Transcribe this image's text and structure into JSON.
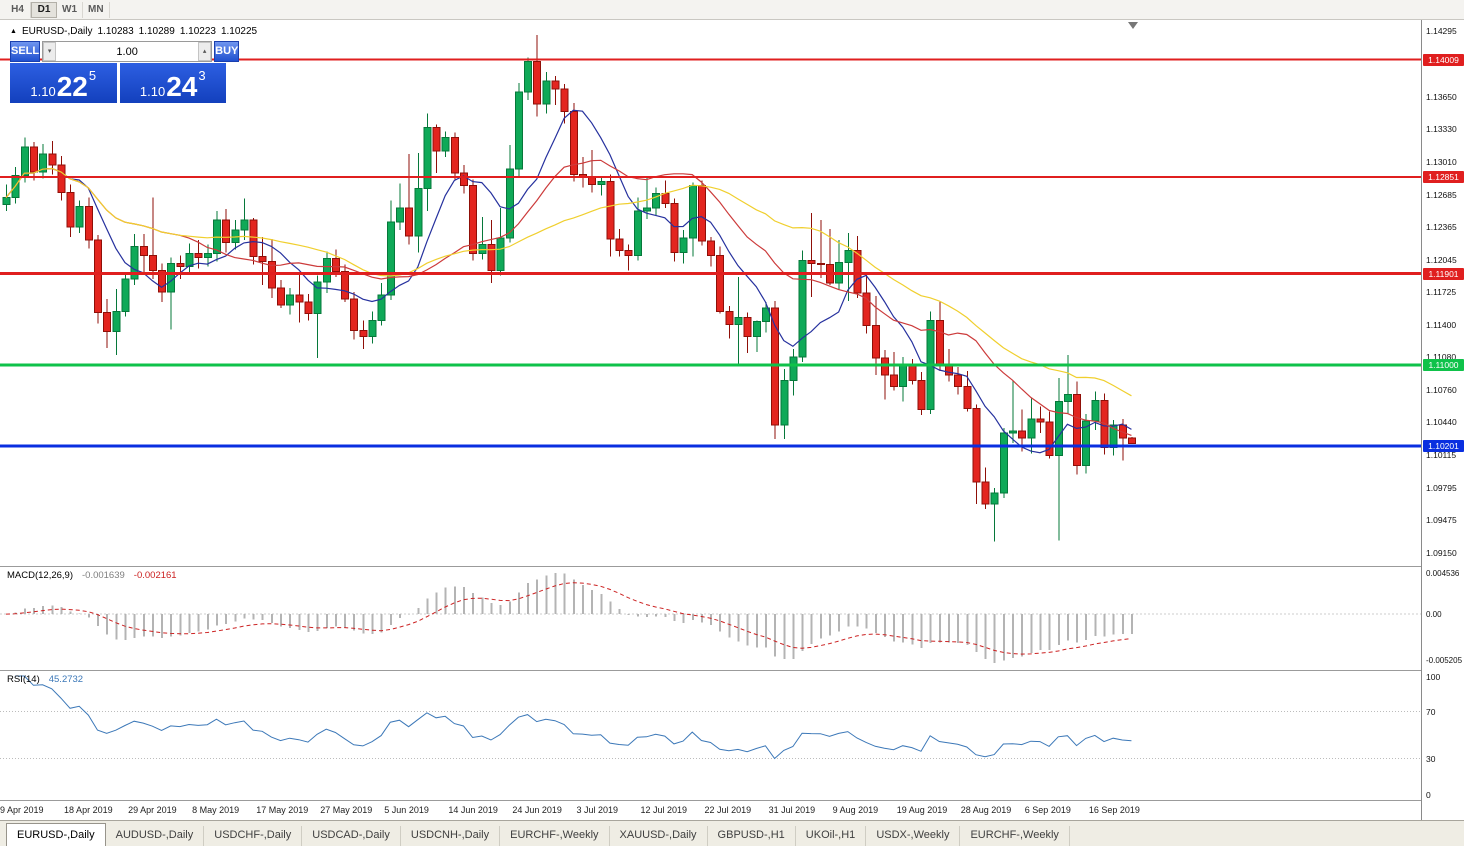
{
  "window": {
    "timeframes": [
      "H4",
      "D1",
      "W1",
      "MN"
    ],
    "active_timeframe": "D1"
  },
  "chart_header": {
    "symbol_title": "EURUSD-,Daily",
    "ohlc": {
      "open": "1.10283",
      "high": "1.10289",
      "low": "1.10223",
      "close": "1.10225"
    },
    "collapse_icon": "▲"
  },
  "one_click_trading": {
    "sell_label": "SELL",
    "buy_label": "BUY",
    "volume": "1.00",
    "bid": {
      "prefix": "1.10",
      "big": "22",
      "sup": "5"
    },
    "ask": {
      "prefix": "1.10",
      "big": "24",
      "sup": "3"
    }
  },
  "indicators": {
    "macd": {
      "label": "MACD(12,26,9)",
      "value_main": "-0.001639",
      "value_signal": "-0.002161",
      "axis_labels": [
        "0.004536",
        "0.00",
        "-0.005205"
      ],
      "params": {
        "fast": 12,
        "slow": 26,
        "signal": 9
      },
      "histogram_color": "#b4b4b4",
      "signal_color": "#cc2222"
    },
    "rsi": {
      "label": "RSI(14)",
      "value": "45.2732",
      "axis_labels": [
        "100",
        "70",
        "30",
        "0"
      ],
      "period": 14,
      "levels": [
        70,
        30
      ],
      "line_color": "#3c78b8"
    }
  },
  "chart_data": {
    "type": "candlestick",
    "symbol": "EURUSD",
    "timeframe": "Daily",
    "background": "#ffffff",
    "colors": {
      "up": "#0fa958",
      "up_border": "#06783a",
      "down": "#e3251f",
      "down_border": "#8f0f08"
    },
    "y_ticks": [
      "1.14295",
      "1.13650",
      "1.13330",
      "1.13010",
      "1.12685",
      "1.12365",
      "1.12045",
      "1.11725",
      "1.11400",
      "1.11080",
      "1.10760",
      "1.10440",
      "1.10115",
      "1.09795",
      "1.09475",
      "1.09150"
    ],
    "hlines": [
      {
        "price": 1.14009,
        "label": "1.14009",
        "color": "#e01f1f",
        "width": 2
      },
      {
        "price": 1.12851,
        "label": "1.12851",
        "color": "#e01f1f",
        "width": 2
      },
      {
        "price": 1.11901,
        "label": "1.11901",
        "color": "#e01f1f",
        "width": 3
      },
      {
        "price": 1.11,
        "label": "1.11000",
        "color": "#0fc24a",
        "width": 3
      },
      {
        "price": 1.10201,
        "label": "1.10201",
        "color": "#0a2fe0",
        "width": 3
      }
    ],
    "moving_averages": [
      {
        "period": 8,
        "color": "#26319e"
      },
      {
        "period": 20,
        "color": "#cc3b3b"
      },
      {
        "period": 34,
        "color": "#f0cf2e"
      }
    ],
    "x_labels": [
      {
        "index": 0,
        "label": "9 Apr 2019"
      },
      {
        "index": 7,
        "label": "18 Apr 2019"
      },
      {
        "index": 14,
        "label": "29 Apr 2019"
      },
      {
        "index": 21,
        "label": "8 May 2019"
      },
      {
        "index": 28,
        "label": "17 May 2019"
      },
      {
        "index": 35,
        "label": "27 May 2019"
      },
      {
        "index": 42,
        "label": "5 Jun 2019"
      },
      {
        "index": 49,
        "label": "14 Jun 2019"
      },
      {
        "index": 56,
        "label": "24 Jun 2019"
      },
      {
        "index": 63,
        "label": "3 Jul 2019"
      },
      {
        "index": 70,
        "label": "12 Jul 2019"
      },
      {
        "index": 77,
        "label": "22 Jul 2019"
      },
      {
        "index": 84,
        "label": "31 Jul 2019"
      },
      {
        "index": 91,
        "label": "9 Aug 2019"
      },
      {
        "index": 98,
        "label": "19 Aug 2019"
      },
      {
        "index": 105,
        "label": "28 Aug 2019"
      },
      {
        "index": 112,
        "label": "6 Sep 2019"
      },
      {
        "index": 119,
        "label": "16 Sep 2019"
      }
    ],
    "candles": [
      [
        1.1258,
        1.1278,
        1.1252,
        1.1265
      ],
      [
        1.1265,
        1.1295,
        1.1259,
        1.1287
      ],
      [
        1.1287,
        1.1324,
        1.128,
        1.1315
      ],
      [
        1.1315,
        1.132,
        1.1282,
        1.129
      ],
      [
        1.129,
        1.1318,
        1.1284,
        1.1308
      ],
      [
        1.1308,
        1.1321,
        1.1288,
        1.1297
      ],
      [
        1.1297,
        1.1306,
        1.1262,
        1.127
      ],
      [
        1.127,
        1.1278,
        1.1226,
        1.1236
      ],
      [
        1.1236,
        1.1262,
        1.123,
        1.1256
      ],
      [
        1.1256,
        1.1265,
        1.1215,
        1.1223
      ],
      [
        1.1223,
        1.1228,
        1.1141,
        1.1152
      ],
      [
        1.1152,
        1.1165,
        1.1117,
        1.1133
      ],
      [
        1.1133,
        1.1175,
        1.111,
        1.1153
      ],
      [
        1.1153,
        1.119,
        1.1148,
        1.1185
      ],
      [
        1.1185,
        1.1229,
        1.1179,
        1.1217
      ],
      [
        1.1217,
        1.1229,
        1.119,
        1.1208
      ],
      [
        1.1208,
        1.1265,
        1.1185,
        1.1193
      ],
      [
        1.1193,
        1.12,
        1.1162,
        1.1172
      ],
      [
        1.1172,
        1.1206,
        1.1135,
        1.12
      ],
      [
        1.12,
        1.1208,
        1.1185,
        1.1197
      ],
      [
        1.1197,
        1.122,
        1.119,
        1.121
      ],
      [
        1.121,
        1.1223,
        1.1195,
        1.1206
      ],
      [
        1.1206,
        1.1219,
        1.1197,
        1.121
      ],
      [
        1.121,
        1.1252,
        1.1202,
        1.1243
      ],
      [
        1.1243,
        1.1254,
        1.1211,
        1.1221
      ],
      [
        1.1221,
        1.1243,
        1.1214,
        1.1233
      ],
      [
        1.1233,
        1.1264,
        1.1223,
        1.1243
      ],
      [
        1.1243,
        1.1245,
        1.1199,
        1.1207
      ],
      [
        1.1207,
        1.1226,
        1.1179,
        1.1202
      ],
      [
        1.1202,
        1.1224,
        1.1166,
        1.1176
      ],
      [
        1.1176,
        1.1184,
        1.1156,
        1.1159
      ],
      [
        1.1159,
        1.1176,
        1.115,
        1.1169
      ],
      [
        1.1169,
        1.1189,
        1.1142,
        1.1162
      ],
      [
        1.1162,
        1.117,
        1.1144,
        1.1151
      ],
      [
        1.1151,
        1.1188,
        1.1107,
        1.1182
      ],
      [
        1.1182,
        1.1212,
        1.1171,
        1.1205
      ],
      [
        1.1205,
        1.1214,
        1.1187,
        1.1192
      ],
      [
        1.1192,
        1.1199,
        1.1162,
        1.1165
      ],
      [
        1.1165,
        1.1172,
        1.1125,
        1.1134
      ],
      [
        1.1134,
        1.1144,
        1.1116,
        1.1128
      ],
      [
        1.1128,
        1.1153,
        1.1121,
        1.1144
      ],
      [
        1.1144,
        1.1181,
        1.1139,
        1.1169
      ],
      [
        1.1169,
        1.1262,
        1.1164,
        1.1241
      ],
      [
        1.1241,
        1.1279,
        1.1233,
        1.1255
      ],
      [
        1.1255,
        1.1308,
        1.1219,
        1.1227
      ],
      [
        1.1227,
        1.1309,
        1.1211,
        1.1274
      ],
      [
        1.1274,
        1.1348,
        1.1252,
        1.1334
      ],
      [
        1.1334,
        1.1337,
        1.1289,
        1.1311
      ],
      [
        1.1311,
        1.133,
        1.1305,
        1.1324
      ],
      [
        1.1324,
        1.1329,
        1.1283,
        1.1289
      ],
      [
        1.1289,
        1.1297,
        1.1269,
        1.1277
      ],
      [
        1.1277,
        1.1283,
        1.1203,
        1.121
      ],
      [
        1.121,
        1.1246,
        1.1204,
        1.1219
      ],
      [
        1.1219,
        1.1243,
        1.1181,
        1.1193
      ],
      [
        1.1193,
        1.1255,
        1.1188,
        1.1225
      ],
      [
        1.1225,
        1.1317,
        1.1221,
        1.1293
      ],
      [
        1.1293,
        1.1378,
        1.1286,
        1.1369
      ],
      [
        1.1369,
        1.1403,
        1.1361,
        1.1399
      ],
      [
        1.1399,
        1.1425,
        1.1345,
        1.1357
      ],
      [
        1.1357,
        1.1389,
        1.1348,
        1.138
      ],
      [
        1.138,
        1.1385,
        1.1356,
        1.1372
      ],
      [
        1.1372,
        1.1377,
        1.1338,
        1.135
      ],
      [
        1.135,
        1.1358,
        1.1281,
        1.1288
      ],
      [
        1.1288,
        1.1305,
        1.1275,
        1.1286
      ],
      [
        1.1286,
        1.1312,
        1.127,
        1.1278
      ],
      [
        1.1278,
        1.1285,
        1.1267,
        1.1281
      ],
      [
        1.1281,
        1.1288,
        1.1207,
        1.1224
      ],
      [
        1.1224,
        1.1234,
        1.1207,
        1.1213
      ],
      [
        1.1213,
        1.1219,
        1.1193,
        1.1208
      ],
      [
        1.1208,
        1.1265,
        1.1203,
        1.1252
      ],
      [
        1.1252,
        1.1286,
        1.1244,
        1.1255
      ],
      [
        1.1255,
        1.1275,
        1.1248,
        1.1269
      ],
      [
        1.1269,
        1.1282,
        1.1255,
        1.1259
      ],
      [
        1.1259,
        1.1264,
        1.1202,
        1.1211
      ],
      [
        1.1211,
        1.1233,
        1.12,
        1.1225
      ],
      [
        1.1225,
        1.128,
        1.1207,
        1.1277
      ],
      [
        1.1277,
        1.1282,
        1.1218,
        1.1222
      ],
      [
        1.1222,
        1.1226,
        1.1197,
        1.1208
      ],
      [
        1.1208,
        1.1217,
        1.1151,
        1.1153
      ],
      [
        1.1153,
        1.1158,
        1.1126,
        1.114
      ],
      [
        1.114,
        1.1187,
        1.1101,
        1.1147
      ],
      [
        1.1147,
        1.1152,
        1.1112,
        1.1128
      ],
      [
        1.1128,
        1.1144,
        1.1113,
        1.1143
      ],
      [
        1.1143,
        1.1162,
        1.1132,
        1.1156
      ],
      [
        1.1156,
        1.1163,
        1.1027,
        1.1041
      ],
      [
        1.1041,
        1.1096,
        1.1027,
        1.1085
      ],
      [
        1.1085,
        1.1116,
        1.107,
        1.1108
      ],
      [
        1.1108,
        1.1213,
        1.1103,
        1.1203
      ],
      [
        1.1203,
        1.125,
        1.1167,
        1.12
      ],
      [
        1.12,
        1.1243,
        1.1186,
        1.1199
      ],
      [
        1.1199,
        1.1234,
        1.1179,
        1.1181
      ],
      [
        1.1181,
        1.1223,
        1.1174,
        1.1201
      ],
      [
        1.1201,
        1.123,
        1.1163,
        1.1213
      ],
      [
        1.1213,
        1.1227,
        1.1166,
        1.1171
      ],
      [
        1.1171,
        1.1189,
        1.1131,
        1.1139
      ],
      [
        1.1139,
        1.1168,
        1.109,
        1.1107
      ],
      [
        1.1107,
        1.1115,
        1.1066,
        1.109
      ],
      [
        1.109,
        1.1113,
        1.1075,
        1.1079
      ],
      [
        1.1079,
        1.1108,
        1.1064,
        1.1099
      ],
      [
        1.1099,
        1.1106,
        1.1081,
        1.1085
      ],
      [
        1.1085,
        1.1093,
        1.1051,
        1.1056
      ],
      [
        1.1056,
        1.1153,
        1.1052,
        1.1144
      ],
      [
        1.1144,
        1.1163,
        1.1094,
        1.1101
      ],
      [
        1.1101,
        1.1116,
        1.1084,
        1.109
      ],
      [
        1.109,
        1.1098,
        1.1071,
        1.1079
      ],
      [
        1.1079,
        1.1094,
        1.1054,
        1.1057
      ],
      [
        1.1057,
        1.1061,
        1.0963,
        1.0985
      ],
      [
        1.0985,
        1.0999,
        1.0958,
        1.0963
      ],
      [
        1.0963,
        1.0979,
        1.0926,
        1.0974
      ],
      [
        1.0974,
        1.1038,
        1.0969,
        1.1033
      ],
      [
        1.1033,
        1.1085,
        1.1023,
        1.1035
      ],
      [
        1.1035,
        1.1056,
        1.1015,
        1.1028
      ],
      [
        1.1028,
        1.1067,
        1.1013,
        1.1047
      ],
      [
        1.1047,
        1.1059,
        1.1033,
        1.1044
      ],
      [
        1.1044,
        1.1054,
        1.1008,
        1.1011
      ],
      [
        1.1011,
        1.1087,
        1.0927,
        1.1064
      ],
      [
        1.1064,
        1.111,
        1.1052,
        1.1071
      ],
      [
        1.1071,
        1.1084,
        1.0992,
        1.1001
      ],
      [
        1.1001,
        1.1052,
        1.0993,
        1.1045
      ],
      [
        1.1045,
        1.1074,
        1.1036,
        1.1065
      ],
      [
        1.1065,
        1.1072,
        1.1012,
        1.1019
      ],
      [
        1.1019,
        1.1046,
        1.1011,
        1.1041
      ],
      [
        1.1041,
        1.1047,
        1.1006,
        1.10283
      ],
      [
        1.10283,
        1.10289,
        1.10223,
        1.10225
      ]
    ]
  },
  "tabs": [
    {
      "label": "EURUSD-,Daily",
      "active": true
    },
    {
      "label": "AUDUSD-,Daily",
      "active": false
    },
    {
      "label": "USDCHF-,Daily",
      "active": false
    },
    {
      "label": "USDCAD-,Daily",
      "active": false
    },
    {
      "label": "USDCNH-,Daily",
      "active": false
    },
    {
      "label": "EURCHF-,Weekly",
      "active": false
    },
    {
      "label": "XAUUSD-,Daily",
      "active": false
    },
    {
      "label": "GBPUSD-,H1",
      "active": false
    },
    {
      "label": "UKOil-,H1",
      "active": false
    },
    {
      "label": "USDX-,Weekly",
      "active": false
    },
    {
      "label": "EURCHF-,Weekly",
      "active": false
    }
  ]
}
